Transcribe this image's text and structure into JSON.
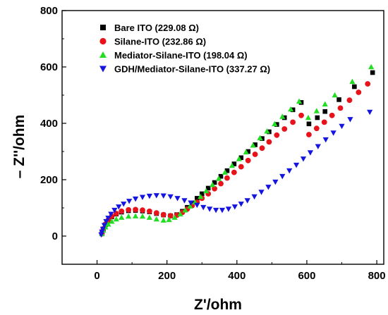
{
  "chart_data": {
    "type": "scatter",
    "title": "",
    "xlabel": "Z'/ohm",
    "ylabel": "– Z''/ohm",
    "xlim": [
      -100,
      820
    ],
    "ylim": [
      -100,
      800
    ],
    "xticks": [
      0,
      200,
      400,
      600,
      800
    ],
    "yticks": [
      0,
      200,
      400,
      600,
      800
    ],
    "grid": false,
    "legend_position": "top-left",
    "series": [
      {
        "name": "Bare ITO (229.08 Ω)",
        "marker": "square",
        "color": "#000000",
        "points": [
          [
            14,
            8
          ],
          [
            18,
            25
          ],
          [
            24,
            40
          ],
          [
            32,
            55
          ],
          [
            42,
            68
          ],
          [
            55,
            78
          ],
          [
            70,
            85
          ],
          [
            90,
            90
          ],
          [
            110,
            91
          ],
          [
            130,
            89
          ],
          [
            150,
            86
          ],
          [
            170,
            80
          ],
          [
            190,
            75
          ],
          [
            210,
            72
          ],
          [
            228,
            76
          ],
          [
            244,
            88
          ],
          [
            258,
            102
          ],
          [
            272,
            118
          ],
          [
            286,
            134
          ],
          [
            300,
            150
          ],
          [
            318,
            170
          ],
          [
            336,
            190
          ],
          [
            354,
            212
          ],
          [
            372,
            232
          ],
          [
            392,
            256
          ],
          [
            412,
            278
          ],
          [
            432,
            300
          ],
          [
            452,
            324
          ],
          [
            472,
            346
          ],
          [
            492,
            370
          ],
          [
            514,
            396
          ],
          [
            536,
            420
          ],
          [
            560,
            448
          ],
          [
            584,
            474
          ],
          [
            606,
            398
          ],
          [
            630,
            420
          ],
          [
            652,
            442
          ],
          [
            692,
            484
          ],
          [
            736,
            530
          ],
          [
            788,
            580
          ]
        ]
      },
      {
        "name": "Silane-ITO (232.86 Ω)",
        "marker": "circle",
        "color": "#e8121a",
        "points": [
          [
            14,
            8
          ],
          [
            18,
            26
          ],
          [
            24,
            42
          ],
          [
            32,
            56
          ],
          [
            42,
            70
          ],
          [
            55,
            80
          ],
          [
            70,
            88
          ],
          [
            90,
            93
          ],
          [
            110,
            94
          ],
          [
            130,
            92
          ],
          [
            150,
            88
          ],
          [
            170,
            82
          ],
          [
            190,
            76
          ],
          [
            210,
            72
          ],
          [
            228,
            74
          ],
          [
            244,
            84
          ],
          [
            258,
            96
          ],
          [
            272,
            108
          ],
          [
            286,
            120
          ],
          [
            300,
            134
          ],
          [
            318,
            150
          ],
          [
            336,
            168
          ],
          [
            354,
            186
          ],
          [
            372,
            206
          ],
          [
            392,
            226
          ],
          [
            412,
            246
          ],
          [
            432,
            268
          ],
          [
            452,
            290
          ],
          [
            472,
            312
          ],
          [
            492,
            334
          ],
          [
            514,
            358
          ],
          [
            536,
            380
          ],
          [
            560,
            404
          ],
          [
            584,
            428
          ],
          [
            606,
            360
          ],
          [
            628,
            382
          ],
          [
            650,
            404
          ],
          [
            672,
            428
          ],
          [
            696,
            454
          ],
          [
            722,
            482
          ],
          [
            748,
            510
          ],
          [
            774,
            540
          ]
        ]
      },
      {
        "name": "Mediator-Silane-ITO (198.04 Ω)",
        "marker": "triangle-up",
        "color": "#22dd22",
        "points": [
          [
            14,
            8
          ],
          [
            18,
            20
          ],
          [
            24,
            32
          ],
          [
            32,
            42
          ],
          [
            42,
            52
          ],
          [
            55,
            60
          ],
          [
            70,
            66
          ],
          [
            90,
            70
          ],
          [
            110,
            71
          ],
          [
            130,
            70
          ],
          [
            150,
            66
          ],
          [
            170,
            60
          ],
          [
            190,
            56
          ],
          [
            206,
            58
          ],
          [
            222,
            66
          ],
          [
            238,
            78
          ],
          [
            252,
            92
          ],
          [
            266,
            106
          ],
          [
            280,
            120
          ],
          [
            296,
            140
          ],
          [
            312,
            160
          ],
          [
            330,
            182
          ],
          [
            348,
            204
          ],
          [
            366,
            226
          ],
          [
            386,
            250
          ],
          [
            406,
            274
          ],
          [
            426,
            298
          ],
          [
            446,
            322
          ],
          [
            466,
            348
          ],
          [
            486,
            372
          ],
          [
            508,
            398
          ],
          [
            530,
            424
          ],
          [
            554,
            450
          ],
          [
            578,
            478
          ],
          [
            604,
            420
          ],
          [
            628,
            444
          ],
          [
            652,
            468
          ],
          [
            680,
            500
          ],
          [
            730,
            548
          ],
          [
            784,
            600
          ]
        ]
      },
      {
        "name": "GDH/Mediator-Silane-ITO (337.27 Ω)",
        "marker": "triangle-down",
        "color": "#1515e0",
        "points": [
          [
            12,
            5
          ],
          [
            14,
            15
          ],
          [
            17,
            25
          ],
          [
            21,
            38
          ],
          [
            26,
            52
          ],
          [
            32,
            64
          ],
          [
            40,
            78
          ],
          [
            50,
            92
          ],
          [
            62,
            104
          ],
          [
            76,
            114
          ],
          [
            92,
            124
          ],
          [
            110,
            132
          ],
          [
            130,
            138
          ],
          [
            150,
            142
          ],
          [
            170,
            144
          ],
          [
            190,
            143
          ],
          [
            210,
            140
          ],
          [
            230,
            134
          ],
          [
            250,
            126
          ],
          [
            268,
            118
          ],
          [
            286,
            110
          ],
          [
            304,
            102
          ],
          [
            322,
            96
          ],
          [
            340,
            92
          ],
          [
            358,
            92
          ],
          [
            376,
            96
          ],
          [
            394,
            104
          ],
          [
            412,
            114
          ],
          [
            430,
            126
          ],
          [
            450,
            140
          ],
          [
            470,
            156
          ],
          [
            490,
            174
          ],
          [
            510,
            192
          ],
          [
            530,
            212
          ],
          [
            550,
            232
          ],
          [
            570,
            252
          ],
          [
            590,
            274
          ],
          [
            610,
            296
          ],
          [
            632,
            318
          ],
          [
            654,
            342
          ],
          [
            676,
            366
          ],
          [
            700,
            390
          ],
          [
            724,
            414
          ],
          [
            780,
            440
          ]
        ]
      }
    ]
  }
}
